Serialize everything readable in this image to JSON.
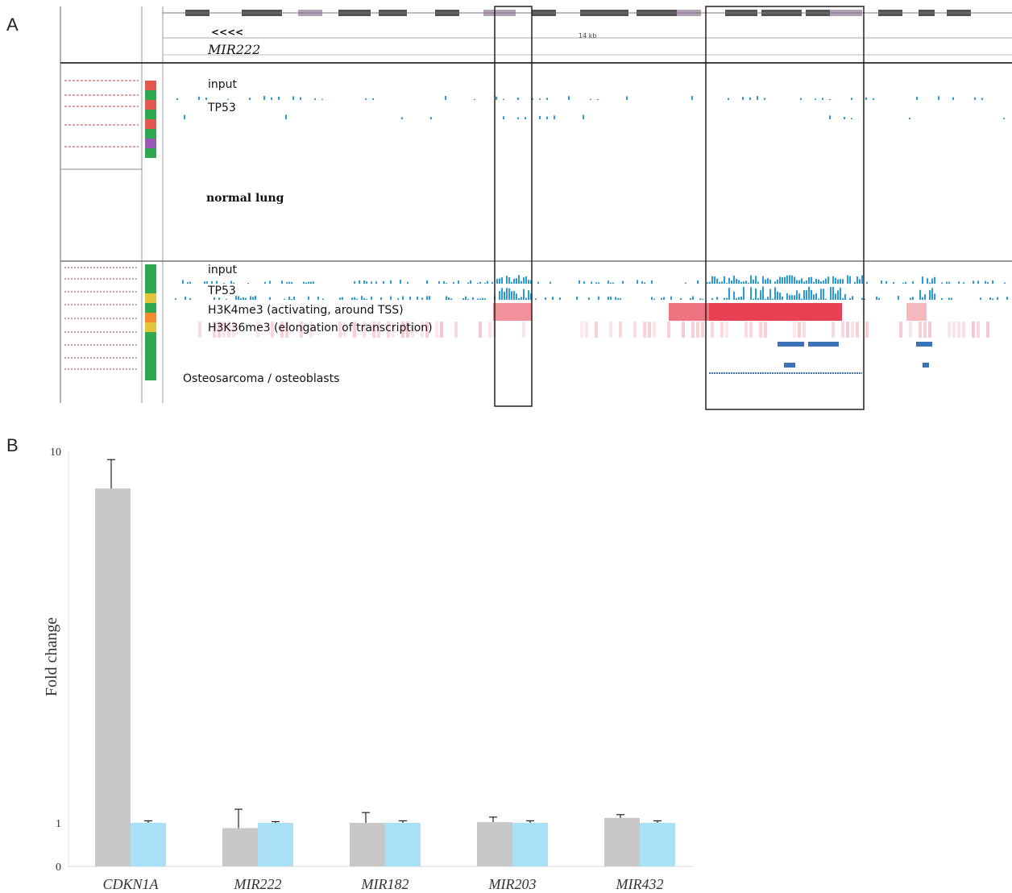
{
  "figure": {
    "panel_a_letter": "A",
    "panel_b_letter": "B"
  },
  "panel_a": {
    "locus_label": "MIR222",
    "strand_marks": "<<<<",
    "scale_label": "14 kb",
    "normal_section_label": "normal lung",
    "cancer_section_label": "Osteosarcoma / osteoblasts",
    "normal_tracks": [
      {
        "label": "input"
      },
      {
        "label": "TP53"
      }
    ],
    "cancer_tracks": [
      {
        "label": "input"
      },
      {
        "label": "TP53"
      },
      {
        "label": "H3K4me3 (activating, around TSS)"
      },
      {
        "label": "H3K36me3 (elongation of transcription)"
      }
    ],
    "colors": {
      "signal": "#2a9bd6",
      "h3k4me3": "#e8364a",
      "h3k36me3": "#f4a7b3",
      "gene_block": "#555555",
      "feature_bar": "#3a73b8"
    }
  },
  "chart_data": {
    "type": "bar",
    "ylabel": "Fold change",
    "ylim": [
      0,
      10
    ],
    "yticks": [
      0,
      1,
      10
    ],
    "categories": [
      "CDKN1A",
      "MIR222",
      "MIR182",
      "MIR203",
      "MIR432"
    ],
    "series": [
      {
        "color": "#c8c8c8",
        "values": [
          9.1,
          0.88,
          1.0,
          1.02,
          1.12
        ],
        "errors": [
          0.7,
          0.45,
          0.25,
          0.12,
          0.08
        ]
      },
      {
        "color": "#a9dff7",
        "values": [
          1.0,
          1.0,
          1.0,
          1.0,
          1.0
        ],
        "errors": [
          0.05,
          0.03,
          0.05,
          0.05,
          0.05
        ]
      }
    ],
    "grid": false
  }
}
